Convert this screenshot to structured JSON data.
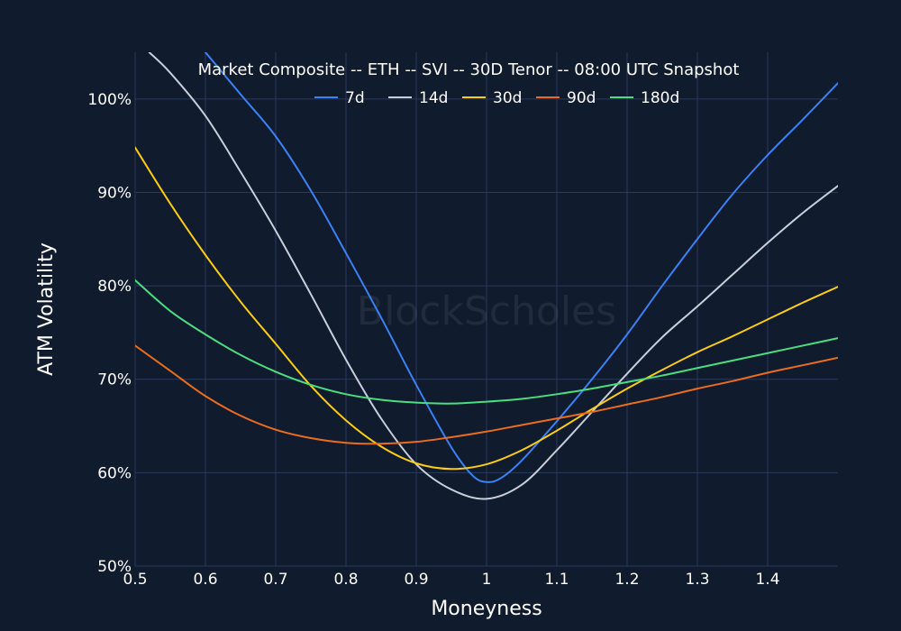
{
  "chart_data": {
    "type": "line",
    "title": "Market Composite -- ETH -- SVI -- 30D Tenor -- 08:00 UTC Snapshot",
    "xlabel": "Moneyness",
    "ylabel": "ATM Volatility",
    "watermark": "BlockScholes",
    "xlim": [
      0.5,
      1.5
    ],
    "ylim": [
      50,
      105
    ],
    "x_ticks": [
      0.5,
      0.6,
      0.7,
      0.8,
      0.9,
      1.0,
      1.1,
      1.2,
      1.3,
      1.4
    ],
    "x_tick_labels": [
      "0.5",
      "0.6",
      "0.7",
      "0.8",
      "0.9",
      "1",
      "1.1",
      "1.2",
      "1.3",
      "1.4"
    ],
    "y_ticks": [
      50,
      60,
      70,
      80,
      90,
      100
    ],
    "y_tick_labels": [
      "50%",
      "60%",
      "70%",
      "80%",
      "90%",
      "100%"
    ],
    "grid": true,
    "legend_position": "top-center",
    "series": [
      {
        "name": "7d",
        "color": "#3b82f6",
        "points": [
          [
            0.6,
            105
          ],
          [
            0.65,
            100.5
          ],
          [
            0.7,
            96
          ],
          [
            0.75,
            90.2
          ],
          [
            0.8,
            83.5
          ],
          [
            0.85,
            76.6
          ],
          [
            0.9,
            69.4
          ],
          [
            0.95,
            62.7
          ],
          [
            0.98,
            59.7
          ],
          [
            1.0,
            59.0
          ],
          [
            1.02,
            59.4
          ],
          [
            1.05,
            61.3
          ],
          [
            1.1,
            65.5
          ],
          [
            1.15,
            70.0
          ],
          [
            1.2,
            74.8
          ],
          [
            1.25,
            80.0
          ],
          [
            1.3,
            85.0
          ],
          [
            1.35,
            89.8
          ],
          [
            1.4,
            94.0
          ],
          [
            1.45,
            97.8
          ],
          [
            1.5,
            101.7
          ]
        ]
      },
      {
        "name": "14d",
        "color": "#c8cfda",
        "points": [
          [
            0.52,
            105
          ],
          [
            0.55,
            102.8
          ],
          [
            0.6,
            98.2
          ],
          [
            0.65,
            92.2
          ],
          [
            0.7,
            85.9
          ],
          [
            0.75,
            79.1
          ],
          [
            0.8,
            72.1
          ],
          [
            0.85,
            65.8
          ],
          [
            0.9,
            60.9
          ],
          [
            0.95,
            58.2
          ],
          [
            1.0,
            57.2
          ],
          [
            1.05,
            58.7
          ],
          [
            1.1,
            62.4
          ],
          [
            1.15,
            66.5
          ],
          [
            1.2,
            70.6
          ],
          [
            1.25,
            74.5
          ],
          [
            1.3,
            77.8
          ],
          [
            1.35,
            81.2
          ],
          [
            1.4,
            84.6
          ],
          [
            1.45,
            87.8
          ],
          [
            1.5,
            90.7
          ]
        ]
      },
      {
        "name": "30d",
        "color": "#facc15",
        "points": [
          [
            0.5,
            94.8
          ],
          [
            0.55,
            88.8
          ],
          [
            0.6,
            83.3
          ],
          [
            0.65,
            78.3
          ],
          [
            0.7,
            73.8
          ],
          [
            0.75,
            69.3
          ],
          [
            0.8,
            65.6
          ],
          [
            0.85,
            62.8
          ],
          [
            0.9,
            61.0
          ],
          [
            0.95,
            60.4
          ],
          [
            1.0,
            60.9
          ],
          [
            1.05,
            62.4
          ],
          [
            1.1,
            64.5
          ],
          [
            1.15,
            66.8
          ],
          [
            1.2,
            69.0
          ],
          [
            1.25,
            71.0
          ],
          [
            1.3,
            72.9
          ],
          [
            1.35,
            74.6
          ],
          [
            1.4,
            76.4
          ],
          [
            1.45,
            78.2
          ],
          [
            1.5,
            79.9
          ]
        ]
      },
      {
        "name": "90d",
        "color": "#ea6c1f",
        "points": [
          [
            0.5,
            73.6
          ],
          [
            0.55,
            70.9
          ],
          [
            0.6,
            68.2
          ],
          [
            0.65,
            66.1
          ],
          [
            0.7,
            64.6
          ],
          [
            0.75,
            63.7
          ],
          [
            0.8,
            63.2
          ],
          [
            0.85,
            63.1
          ],
          [
            0.9,
            63.3
          ],
          [
            0.95,
            63.8
          ],
          [
            1.0,
            64.4
          ],
          [
            1.05,
            65.1
          ],
          [
            1.1,
            65.8
          ],
          [
            1.15,
            66.5
          ],
          [
            1.2,
            67.3
          ],
          [
            1.25,
            68.1
          ],
          [
            1.3,
            69.0
          ],
          [
            1.35,
            69.8
          ],
          [
            1.4,
            70.7
          ],
          [
            1.45,
            71.5
          ],
          [
            1.5,
            72.3
          ]
        ]
      },
      {
        "name": "180d",
        "color": "#4ade80",
        "points": [
          [
            0.5,
            80.6
          ],
          [
            0.55,
            77.3
          ],
          [
            0.6,
            74.8
          ],
          [
            0.65,
            72.6
          ],
          [
            0.7,
            70.8
          ],
          [
            0.75,
            69.4
          ],
          [
            0.8,
            68.4
          ],
          [
            0.85,
            67.8
          ],
          [
            0.9,
            67.5
          ],
          [
            0.95,
            67.4
          ],
          [
            1.0,
            67.6
          ],
          [
            1.05,
            67.9
          ],
          [
            1.1,
            68.4
          ],
          [
            1.15,
            69.0
          ],
          [
            1.2,
            69.7
          ],
          [
            1.25,
            70.4
          ],
          [
            1.3,
            71.2
          ],
          [
            1.35,
            72.0
          ],
          [
            1.4,
            72.8
          ],
          [
            1.45,
            73.6
          ],
          [
            1.5,
            74.4
          ]
        ]
      }
    ]
  }
}
